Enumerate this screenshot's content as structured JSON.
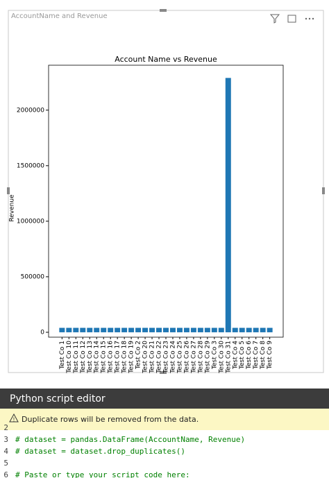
{
  "visual": {
    "header": "AccountName and Revenue"
  },
  "chart_data": {
    "type": "bar",
    "title": "Account Name vs Revenue",
    "ylabel": "Revenue",
    "categories": [
      "Test Co 1",
      "Test Co 10",
      "Test Co 11",
      "Test Co 12",
      "Test Co 13",
      "Test Co 14",
      "Test Co 15",
      "Test Co 16",
      "Test Co 17",
      "Test Co 18",
      "Test Co 19",
      "Test Co 2",
      "Test Co 20",
      "Test Co 21",
      "Test Co 22",
      "Test Co 23",
      "Test Co 24",
      "Test Co 25",
      "Test Co 26",
      "Test Co 27",
      "Test Co 28",
      "Test Co 29",
      "Test Co 3",
      "Test Co 30",
      "Test Co 31",
      "Test Co 4",
      "Test Co 5",
      "Test Co 6",
      "Test Co 7",
      "Test Co 8",
      "Test Co 9"
    ],
    "values": [
      40000,
      40000,
      40000,
      40000,
      40000,
      40000,
      40000,
      40000,
      40000,
      40000,
      40000,
      40000,
      40000,
      40000,
      40000,
      40000,
      40000,
      40000,
      40000,
      40000,
      40000,
      40000,
      40000,
      40000,
      2290000,
      40000,
      40000,
      40000,
      40000,
      40000,
      40000
    ],
    "color": "#1f77b4",
    "ylim": [
      -44000,
      2404500
    ],
    "yticks": [
      0,
      500000,
      1000000,
      1500000,
      2000000
    ]
  },
  "editor": {
    "title": "Python script editor",
    "warning": "Duplicate rows will be removed from the data.",
    "lines": [
      {
        "number": "2"
      },
      {
        "number": "3",
        "code": "# dataset = pandas.DataFrame(AccountName, Revenue)"
      },
      {
        "number": "4",
        "code": "# dataset = dataset.drop_duplicates()"
      },
      {
        "number": "5"
      },
      {
        "number": "6",
        "code": "# Paste or type your script code here:"
      }
    ]
  }
}
